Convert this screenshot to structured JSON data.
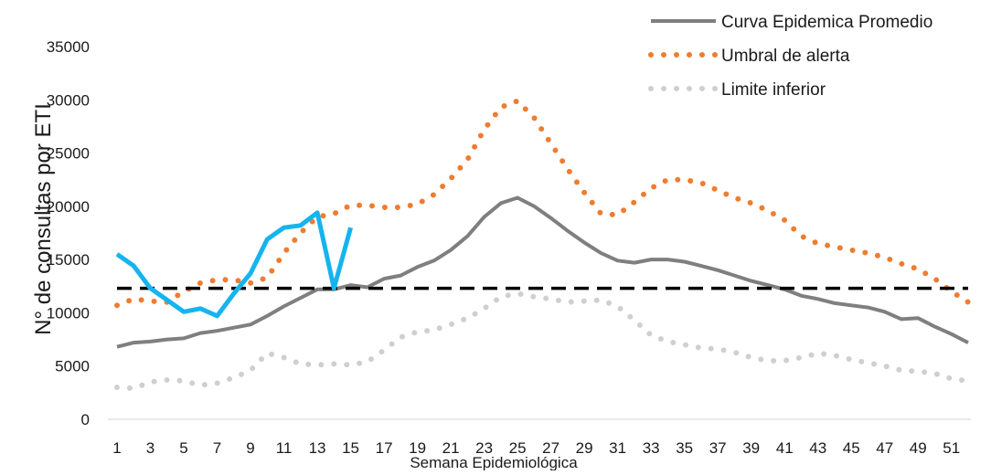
{
  "chart_data": {
    "type": "line",
    "title": "",
    "xlabel": "Semana Epidemiológica",
    "ylabel": "N° de consultas por ETI",
    "ylim": [
      0,
      35000
    ],
    "yticks": [
      0,
      5000,
      10000,
      15000,
      20000,
      25000,
      30000,
      35000
    ],
    "xlim": [
      1,
      52
    ],
    "xticks": [
      1,
      3,
      5,
      7,
      9,
      11,
      13,
      15,
      17,
      19,
      21,
      23,
      25,
      27,
      29,
      31,
      33,
      35,
      37,
      39,
      41,
      43,
      45,
      47,
      49,
      51
    ],
    "grid": false,
    "legend_position": "top-right",
    "colors": {
      "promedio": "#7f7f7f",
      "umbral": "#ed7d31",
      "limite": "#cfcfcf",
      "actual": "#16b4ee",
      "referencia": "#000000"
    },
    "series": [
      {
        "key": "promedio",
        "name": "Curva Epidemica Promedio",
        "x": [
          1,
          2,
          3,
          4,
          5,
          6,
          7,
          8,
          9,
          10,
          11,
          12,
          13,
          14,
          15,
          16,
          17,
          18,
          19,
          20,
          21,
          22,
          23,
          24,
          25,
          26,
          27,
          28,
          29,
          30,
          31,
          32,
          33,
          34,
          35,
          36,
          37,
          38,
          39,
          40,
          41,
          42,
          43,
          44,
          45,
          46,
          47,
          48,
          49,
          50,
          51,
          52
        ],
        "values": [
          6800,
          7200,
          7300,
          7500,
          7600,
          8100,
          8300,
          8600,
          8900,
          9700,
          10600,
          11400,
          12200,
          12200,
          12600,
          12400,
          13200,
          13500,
          14300,
          14900,
          15900,
          17200,
          19000,
          20300,
          20800,
          20000,
          18900,
          17700,
          16600,
          15600,
          14900,
          14700,
          15000,
          15000,
          14800,
          14400,
          14000,
          13500,
          13000,
          12600,
          12200,
          11600,
          11300,
          10900,
          10700,
          10500,
          10100,
          9400,
          9500,
          8700,
          8000,
          7200
        ]
      },
      {
        "key": "umbral",
        "name": "Umbral de alerta",
        "x": [
          1,
          2,
          3,
          4,
          5,
          6,
          7,
          8,
          9,
          10,
          11,
          12,
          13,
          14,
          15,
          16,
          17,
          18,
          19,
          20,
          21,
          22,
          23,
          24,
          25,
          26,
          27,
          28,
          29,
          30,
          31,
          32,
          33,
          34,
          35,
          36,
          37,
          38,
          39,
          40,
          41,
          42,
          43,
          44,
          45,
          46,
          47,
          48,
          49,
          50,
          51,
          52
        ],
        "values": [
          10700,
          11300,
          11100,
          11000,
          12000,
          12800,
          13100,
          13100,
          12800,
          13300,
          15600,
          17500,
          19000,
          19300,
          20100,
          20100,
          19900,
          19900,
          20200,
          21100,
          22600,
          24400,
          27200,
          29300,
          29900,
          28300,
          25900,
          23500,
          21300,
          19300,
          19200,
          20400,
          21700,
          22500,
          22500,
          22200,
          21500,
          20800,
          20300,
          19600,
          18700,
          17200,
          16500,
          16200,
          15900,
          15600,
          15200,
          14600,
          14100,
          13200,
          12000,
          11000
        ]
      },
      {
        "key": "limite",
        "name": "Limite inferior",
        "x": [
          1,
          2,
          3,
          4,
          5,
          6,
          7,
          8,
          9,
          10,
          11,
          12,
          13,
          14,
          15,
          16,
          17,
          18,
          19,
          20,
          21,
          22,
          23,
          24,
          25,
          26,
          27,
          28,
          29,
          30,
          31,
          32,
          33,
          34,
          35,
          36,
          37,
          38,
          39,
          40,
          41,
          42,
          43,
          44,
          45,
          46,
          47,
          48,
          49,
          50,
          51,
          52
        ],
        "values": [
          3000,
          2900,
          3500,
          3700,
          3600,
          3200,
          3400,
          3900,
          4600,
          6200,
          5800,
          5200,
          5100,
          5200,
          5100,
          5400,
          6500,
          7700,
          8200,
          8400,
          8900,
          9500,
          10400,
          11500,
          11800,
          11500,
          11300,
          11000,
          11100,
          11200,
          10600,
          9300,
          7900,
          7300,
          7000,
          6700,
          6600,
          6300,
          5800,
          5500,
          5500,
          5800,
          6200,
          6000,
          5600,
          5300,
          5000,
          4600,
          4500,
          4300,
          3800,
          3600
        ]
      },
      {
        "key": "actual",
        "name": "",
        "x": [
          1,
          2,
          3,
          4,
          5,
          6,
          7,
          8,
          9,
          10,
          11,
          12,
          13,
          14,
          15
        ],
        "values": [
          15500,
          14400,
          12300,
          11200,
          10100,
          10400,
          9700,
          11800,
          13700,
          16900,
          18000,
          18200,
          19400,
          12300,
          18000
        ]
      },
      {
        "key": "referencia",
        "name": "",
        "x": [
          1,
          52
        ],
        "values": [
          12300,
          12300
        ]
      }
    ]
  }
}
